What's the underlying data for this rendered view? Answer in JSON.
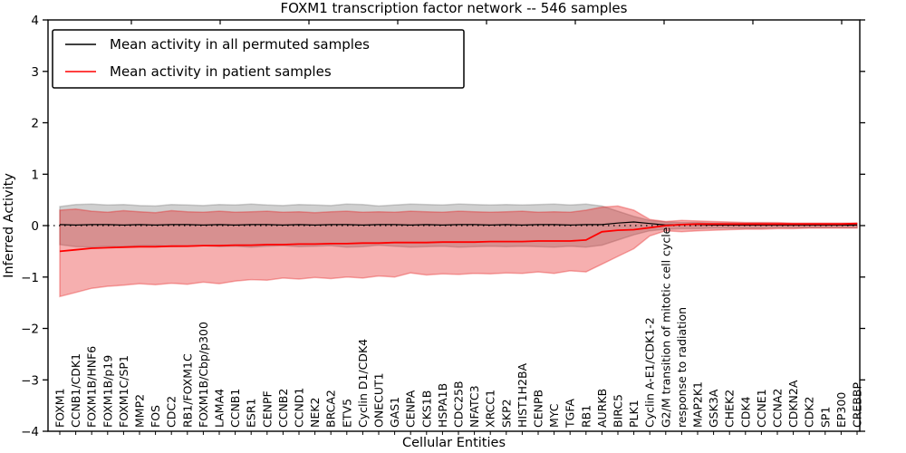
{
  "figure": {
    "title": "FOXM1 transcription factor network -- 546 samples",
    "xlabel": "Cellular Entities",
    "ylabel": "Inferred Activity"
  },
  "legend": {
    "position": "upper left",
    "items": [
      {
        "label": "Mean activity in all permuted samples",
        "color": "#000000"
      },
      {
        "label": "Mean activity in patient samples",
        "color": "#ff0000"
      }
    ]
  },
  "colors": {
    "permuted_line": "#000000",
    "patient_line": "#ff0000",
    "permuted_band": "rgba(120,120,120,0.35)",
    "patient_band": "rgba(230,25,25,0.35)",
    "zero_line": "#000000",
    "background": "#ffffff"
  },
  "chart_data": {
    "type": "line",
    "title": "FOXM1 transcription factor network -- 546 samples",
    "xlabel": "Cellular Entities",
    "ylabel": "Inferred Activity",
    "ylim": [
      -4,
      4
    ],
    "yticks": [
      -4,
      -3,
      -2,
      -1,
      0,
      1,
      2,
      3,
      4
    ],
    "grid": false,
    "legend_position": "upper left",
    "zero_reference_line": {
      "y": 0,
      "style": "dotted",
      "color": "#000000"
    },
    "x_tick_label_rotation_deg": 90,
    "categories": [
      "FOXM1",
      "CCNB1/CDK1",
      "FOXM1B/HNF6",
      "FOXM1B/p19",
      "FOXM1C/SP1",
      "MMP2",
      "FOS",
      "CDC2",
      "RB1/FOXM1C",
      "FOXM1B/Cbp/p300",
      "LAMA4",
      "CCNB1",
      "ESR1",
      "CENPF",
      "CCNB2",
      "CCND1",
      "NEK2",
      "BRCA2",
      "ETV5",
      "Cyclin D1/CDK4",
      "ONECUT1",
      "GAS1",
      "CENPA",
      "CKS1B",
      "HSPA1B",
      "CDC25B",
      "NFATC3",
      "XRCC1",
      "SKP2",
      "HIST1H2BA",
      "CENPB",
      "MYC",
      "TGFA",
      "RB1",
      "AURKB",
      "BIRC5",
      "PLK1",
      "Cyclin A-E1/CDK1-2",
      "G2/M transition of mitotic cell cycle",
      "response to radiation",
      "MAP2K1",
      "GSK3A",
      "CHEK2",
      "CDK4",
      "CCNE1",
      "CCNA2",
      "CDKN2A",
      "CDK2",
      "SP1",
      "EP300",
      "CREBBP"
    ],
    "series": [
      {
        "name": "Mean activity in all permuted samples",
        "color": "#000000",
        "values": [
          0.02,
          0.01,
          0.02,
          0.02,
          0.01,
          0.02,
          0.01,
          0.02,
          0.02,
          0.01,
          0.02,
          0.01,
          0.02,
          0.02,
          0.01,
          0.02,
          0.01,
          0.02,
          0.02,
          0.01,
          0.02,
          0.02,
          0.01,
          0.02,
          0.01,
          0.02,
          0.02,
          0.01,
          0.02,
          0.01,
          0.02,
          0.02,
          0.01,
          0.02,
          0.02,
          0.05,
          0.07,
          0.04,
          0.01,
          0.02,
          0.02,
          0.01,
          0.01,
          0.01,
          0.01,
          0.01,
          0.01,
          0.01,
          0.01,
          0.01,
          0.01
        ]
      },
      {
        "name": "Mean activity in patient samples",
        "color": "#ff0000",
        "values": [
          -0.5,
          -0.47,
          -0.44,
          -0.43,
          -0.42,
          -0.41,
          -0.41,
          -0.4,
          -0.4,
          -0.39,
          -0.39,
          -0.38,
          -0.38,
          -0.37,
          -0.37,
          -0.36,
          -0.36,
          -0.35,
          -0.35,
          -0.34,
          -0.34,
          -0.33,
          -0.33,
          -0.33,
          -0.32,
          -0.32,
          -0.32,
          -0.31,
          -0.31,
          -0.31,
          -0.3,
          -0.3,
          -0.3,
          -0.28,
          -0.12,
          -0.09,
          -0.08,
          -0.04,
          0.0,
          0.02,
          0.03,
          0.03,
          0.03,
          0.03,
          0.03,
          0.03,
          0.03,
          0.03,
          0.03,
          0.03,
          0.04
        ]
      }
    ],
    "bands": [
      {
        "name": "permuted samples range",
        "fill": "rgba(120,120,120,0.35)",
        "upper": [
          0.37,
          0.41,
          0.42,
          0.4,
          0.41,
          0.39,
          0.38,
          0.41,
          0.4,
          0.39,
          0.41,
          0.4,
          0.42,
          0.4,
          0.39,
          0.41,
          0.4,
          0.39,
          0.42,
          0.41,
          0.38,
          0.4,
          0.42,
          0.41,
          0.4,
          0.42,
          0.41,
          0.4,
          0.41,
          0.4,
          0.41,
          0.42,
          0.4,
          0.42,
          0.38,
          0.28,
          0.18,
          0.1,
          0.07,
          0.06,
          0.06,
          0.05,
          0.05,
          0.05,
          0.05,
          0.04,
          0.04,
          0.04,
          0.04,
          0.04,
          0.04
        ],
        "lower": [
          -0.37,
          -0.41,
          -0.42,
          -0.4,
          -0.41,
          -0.39,
          -0.38,
          -0.41,
          -0.4,
          -0.39,
          -0.41,
          -0.4,
          -0.42,
          -0.4,
          -0.39,
          -0.41,
          -0.4,
          -0.39,
          -0.42,
          -0.41,
          -0.38,
          -0.4,
          -0.42,
          -0.41,
          -0.4,
          -0.42,
          -0.41,
          -0.4,
          -0.41,
          -0.4,
          -0.41,
          -0.42,
          -0.4,
          -0.42,
          -0.38,
          -0.28,
          -0.18,
          -0.1,
          -0.07,
          -0.06,
          -0.06,
          -0.05,
          -0.05,
          -0.05,
          -0.05,
          -0.04,
          -0.04,
          -0.04,
          -0.04,
          -0.04,
          -0.04
        ]
      },
      {
        "name": "patient samples range",
        "fill": "rgba(230,25,25,0.35)",
        "upper": [
          0.3,
          0.32,
          0.28,
          0.26,
          0.29,
          0.27,
          0.25,
          0.29,
          0.27,
          0.26,
          0.28,
          0.26,
          0.27,
          0.28,
          0.26,
          0.27,
          0.25,
          0.27,
          0.28,
          0.26,
          0.27,
          0.26,
          0.28,
          0.27,
          0.26,
          0.28,
          0.27,
          0.26,
          0.27,
          0.28,
          0.26,
          0.27,
          0.26,
          0.3,
          0.36,
          0.38,
          0.3,
          0.12,
          0.08,
          0.1,
          0.09,
          0.08,
          0.07,
          0.06,
          0.06,
          0.06,
          0.05,
          0.05,
          0.05,
          0.05,
          0.05
        ],
        "lower": [
          -1.38,
          -1.3,
          -1.22,
          -1.18,
          -1.16,
          -1.13,
          -1.15,
          -1.12,
          -1.14,
          -1.1,
          -1.13,
          -1.08,
          -1.05,
          -1.06,
          -1.02,
          -1.04,
          -1.01,
          -1.03,
          -1.0,
          -1.02,
          -0.98,
          -1.0,
          -0.92,
          -0.96,
          -0.94,
          -0.95,
          -0.93,
          -0.94,
          -0.92,
          -0.93,
          -0.9,
          -0.93,
          -0.88,
          -0.9,
          -0.75,
          -0.6,
          -0.45,
          -0.2,
          -0.1,
          -0.12,
          -0.1,
          -0.09,
          -0.08,
          -0.07,
          -0.07,
          -0.06,
          -0.06,
          -0.05,
          -0.05,
          -0.05,
          -0.05
        ]
      }
    ]
  }
}
